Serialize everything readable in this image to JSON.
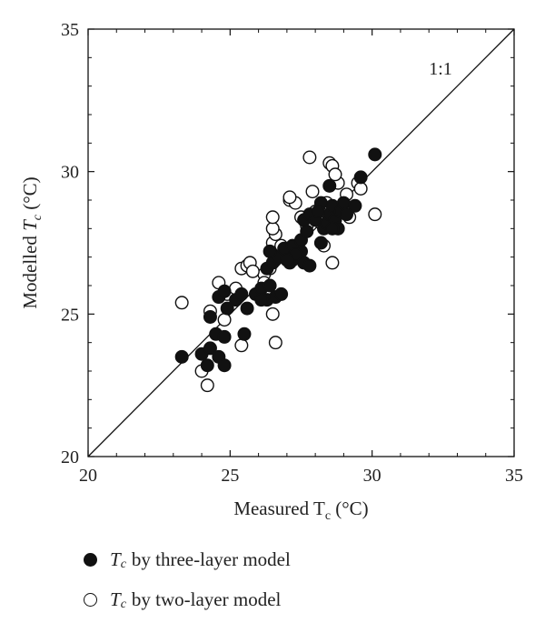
{
  "chart_data": {
    "type": "scatter",
    "title": "",
    "xlabel": {
      "text": "Measured T",
      "sub": "c",
      "unit": " (°C)"
    },
    "ylabel": {
      "text": "Modelled ",
      "var": "T",
      "sub": "c",
      "unit": " (°C)"
    },
    "xlim": [
      20,
      35
    ],
    "ylim": [
      20,
      35
    ],
    "xticks": [
      20,
      25,
      30,
      35
    ],
    "yticks": [
      20,
      25,
      30,
      35
    ],
    "reference_line": {
      "label": "1:1",
      "from": [
        20,
        20
      ],
      "to": [
        35,
        35
      ]
    },
    "grid": false,
    "legend_position": "bottom",
    "series": [
      {
        "name": "by three-layer model",
        "marker": "filled",
        "points": [
          [
            23.3,
            23.5
          ],
          [
            24.0,
            23.6
          ],
          [
            24.2,
            23.2
          ],
          [
            24.3,
            23.8
          ],
          [
            24.6,
            23.5
          ],
          [
            24.8,
            23.2
          ],
          [
            24.3,
            24.9
          ],
          [
            24.5,
            24.3
          ],
          [
            24.8,
            24.2
          ],
          [
            24.9,
            25.2
          ],
          [
            25.2,
            25.5
          ],
          [
            24.6,
            25.6
          ],
          [
            24.8,
            25.8
          ],
          [
            25.4,
            25.7
          ],
          [
            25.6,
            25.2
          ],
          [
            25.5,
            24.3
          ],
          [
            25.9,
            25.7
          ],
          [
            26.1,
            25.9
          ],
          [
            26.3,
            25.5
          ],
          [
            26.4,
            26.0
          ],
          [
            26.6,
            25.6
          ],
          [
            26.8,
            25.7
          ],
          [
            26.3,
            26.6
          ],
          [
            26.5,
            26.8
          ],
          [
            26.7,
            27.0
          ],
          [
            26.4,
            27.2
          ],
          [
            26.9,
            27.3
          ],
          [
            27.1,
            26.8
          ],
          [
            27.3,
            27.0
          ],
          [
            27.5,
            27.2
          ],
          [
            27.6,
            26.8
          ],
          [
            27.8,
            26.7
          ],
          [
            27.2,
            27.4
          ],
          [
            27.5,
            27.6
          ],
          [
            27.7,
            27.9
          ],
          [
            27.6,
            28.3
          ],
          [
            27.8,
            28.5
          ],
          [
            28.0,
            28.3
          ],
          [
            28.2,
            27.5
          ],
          [
            28.3,
            28.0
          ],
          [
            28.4,
            28.2
          ],
          [
            28.5,
            28.5
          ],
          [
            28.6,
            28.8
          ],
          [
            28.7,
            28.3
          ],
          [
            28.8,
            28.0
          ],
          [
            28.5,
            29.5
          ],
          [
            28.9,
            28.6
          ],
          [
            29.0,
            28.9
          ],
          [
            29.1,
            28.5
          ],
          [
            28.2,
            28.9
          ],
          [
            28.1,
            28.6
          ],
          [
            29.4,
            28.8
          ],
          [
            29.6,
            29.8
          ],
          [
            30.1,
            30.6
          ],
          [
            28.6,
            28.0
          ],
          [
            27.3,
            27.1
          ],
          [
            27.0,
            26.9
          ],
          [
            26.1,
            25.5
          ]
        ]
      },
      {
        "name": "by two-layer model",
        "marker": "open",
        "points": [
          [
            23.3,
            25.4
          ],
          [
            24.0,
            23.0
          ],
          [
            24.2,
            22.5
          ],
          [
            24.3,
            25.1
          ],
          [
            24.6,
            26.1
          ],
          [
            24.8,
            24.8
          ],
          [
            24.9,
            25.7
          ],
          [
            25.2,
            25.9
          ],
          [
            25.4,
            26.6
          ],
          [
            25.6,
            26.7
          ],
          [
            25.7,
            26.8
          ],
          [
            25.4,
            23.9
          ],
          [
            26.2,
            26.4
          ],
          [
            26.4,
            26.6
          ],
          [
            26.5,
            25.0
          ],
          [
            26.6,
            24.0
          ],
          [
            26.2,
            26.1
          ],
          [
            26.5,
            27.5
          ],
          [
            26.6,
            27.8
          ],
          [
            26.5,
            28.0
          ],
          [
            26.5,
            28.4
          ],
          [
            26.7,
            27.2
          ],
          [
            26.9,
            27.0
          ],
          [
            27.1,
            29.0
          ],
          [
            27.3,
            28.9
          ],
          [
            27.5,
            28.4
          ],
          [
            27.7,
            28.1
          ],
          [
            27.8,
            30.5
          ],
          [
            27.9,
            29.3
          ],
          [
            28.0,
            28.6
          ],
          [
            28.2,
            28.2
          ],
          [
            28.3,
            27.4
          ],
          [
            28.4,
            28.9
          ],
          [
            28.5,
            30.3
          ],
          [
            28.6,
            30.2
          ],
          [
            28.6,
            26.8
          ],
          [
            28.8,
            29.6
          ],
          [
            29.0,
            28.7
          ],
          [
            29.1,
            29.2
          ],
          [
            29.2,
            28.4
          ],
          [
            29.5,
            29.6
          ],
          [
            29.6,
            29.4
          ],
          [
            30.1,
            28.5
          ],
          [
            27.1,
            29.1
          ],
          [
            26.8,
            27.4
          ],
          [
            27.2,
            26.9
          ],
          [
            25.8,
            26.5
          ],
          [
            28.7,
            29.9
          ]
        ]
      }
    ]
  }
}
